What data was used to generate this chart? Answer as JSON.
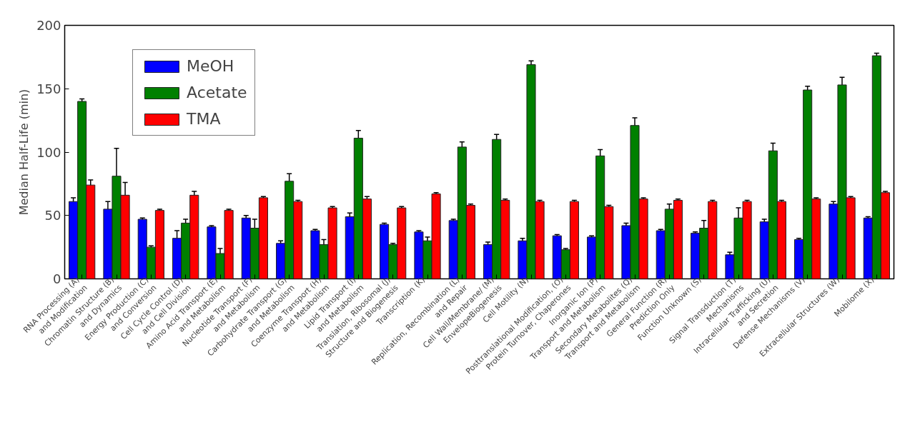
{
  "chart_data": {
    "type": "bar",
    "ylabel": "Median Half-Life (min)",
    "categories": [
      "RNA Processing (A)\nand Modification",
      "Chromatin Structure (B)\nand Dynamics",
      "Energy Production (C)\nand Conversion",
      "Cell Cycle Control (D)\nand Cell Division",
      "Amino Acid Transport (E)\nand Metabolism",
      "Nucleotide Transport (F)\nand Metabolism",
      "Carbohydrate Transport (G)\nand Metabolism",
      "Coenzyme Transport (H)\nand Metabolism",
      "Lipid Transport (I)\nand Metabolism",
      "Translation, Ribosomal (J)\nStructure and Biogenesis",
      "Transcription (K)",
      "Replication, Recombination (L)\nand Repair",
      "Cell Wall/Membrane/ (M)\nEnvelopeBiogenesis",
      "Cell Motility (N)",
      "Posttranslational Modification, (O)\nProtein Turnover, Chaperones",
      "Inorganic Ion (P)\nTransport and Metabolism",
      "Secondary Metabolites (Q)\nTransport and Metabolism",
      "General Function (R)\nPrediction Only",
      "Function Unknown (S)",
      "Signal Transduction (T)\nMechanisms",
      "Intracellular Trafficking (U)\nand Secretion",
      "Defense Mechanisms (V)",
      "Extracellular Structures (W)",
      "Mobilome (X)"
    ],
    "series": [
      {
        "name": "MeOH",
        "color": "#0000ff",
        "values": [
          61,
          55,
          47,
          32,
          41,
          48,
          28,
          38,
          49,
          43,
          37,
          46,
          27,
          30,
          34,
          33,
          42,
          38,
          36,
          19,
          45,
          31,
          59,
          48
        ],
        "errors": [
          3,
          6,
          1,
          6,
          1,
          2,
          2,
          1,
          3,
          1,
          1,
          1,
          2,
          2,
          1,
          1,
          2,
          1,
          1,
          2,
          2,
          1,
          2,
          1
        ]
      },
      {
        "name": "Acetate",
        "color": "#008000",
        "values": [
          140,
          81,
          25,
          44,
          20,
          40,
          77,
          27,
          111,
          27,
          30,
          104,
          110,
          169,
          23,
          97,
          121,
          55,
          40,
          48,
          101,
          149,
          153,
          176
        ],
        "errors": [
          2,
          22,
          1,
          3,
          4,
          7,
          6,
          4,
          6,
          1,
          3,
          4,
          4,
          3,
          1,
          5,
          6,
          4,
          6,
          8,
          6,
          3,
          6,
          2
        ]
      },
      {
        "name": "TMA",
        "color": "#ff0000",
        "values": [
          74,
          66,
          54,
          66,
          54,
          64,
          61,
          56,
          63,
          56,
          67,
          58,
          62,
          61,
          61,
          57,
          63,
          62,
          61,
          61,
          61,
          63,
          64,
          68
        ],
        "errors": [
          4,
          10,
          1,
          3,
          1,
          1,
          1,
          1,
          2,
          1,
          1,
          1,
          1,
          1,
          1,
          1,
          1,
          1,
          1,
          1,
          1,
          1,
          1,
          1
        ]
      }
    ],
    "ylim": [
      0,
      200
    ],
    "yticks": [
      0,
      50,
      100,
      150,
      200
    ],
    "grid": false,
    "legend": "top left"
  }
}
